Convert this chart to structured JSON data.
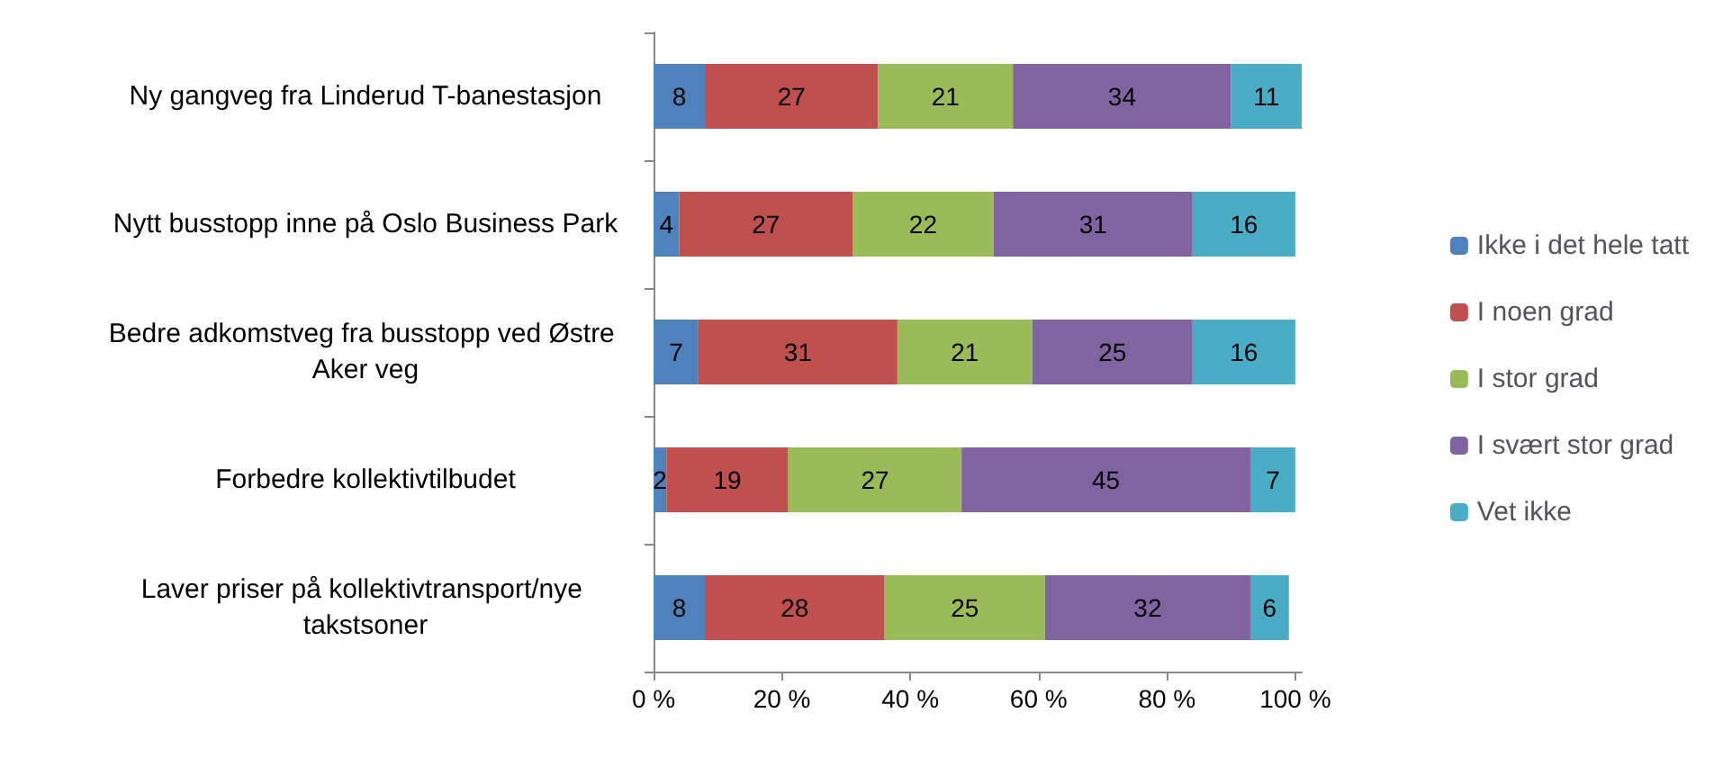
{
  "chart_data": {
    "type": "bar",
    "orientation": "horizontal",
    "stacked": true,
    "data_labels": true,
    "legend": "right",
    "grid": false,
    "categories": [
      "Ny gangveg fra Linderud T-banestasjon",
      "Nytt busstopp inne på Oslo Business Park",
      "Bedre adkomstveg fra busstopp ved Østre Aker veg",
      "Forbedre kollektivtilbudet",
      "Laver priser på kollektivtransport/nye takstsoner"
    ],
    "series": [
      {
        "name": "Ikke i det hele tatt",
        "color": "#4f81bd",
        "values": [
          8,
          4,
          7,
          2,
          8
        ]
      },
      {
        "name": "I noen grad",
        "color": "#c0504d",
        "values": [
          27,
          27,
          31,
          19,
          28
        ]
      },
      {
        "name": "I stor grad",
        "color": "#9bbb59",
        "values": [
          21,
          22,
          21,
          27,
          25
        ]
      },
      {
        "name": "I svært stor grad",
        "color": "#8064a2",
        "values": [
          34,
          31,
          25,
          45,
          32
        ]
      },
      {
        "name": "Vet ikke",
        "color": "#4bacc6",
        "values": [
          11,
          16,
          16,
          7,
          6
        ]
      }
    ],
    "xlim": [
      0,
      101
    ],
    "xticks": [
      {
        "value": 0,
        "label": "0 %"
      },
      {
        "value": 20,
        "label": "20 %"
      },
      {
        "value": 40,
        "label": "40 %"
      },
      {
        "value": 60,
        "label": "60 %"
      },
      {
        "value": 80,
        "label": "80 %"
      },
      {
        "value": 100,
        "label": "100 %"
      }
    ]
  }
}
